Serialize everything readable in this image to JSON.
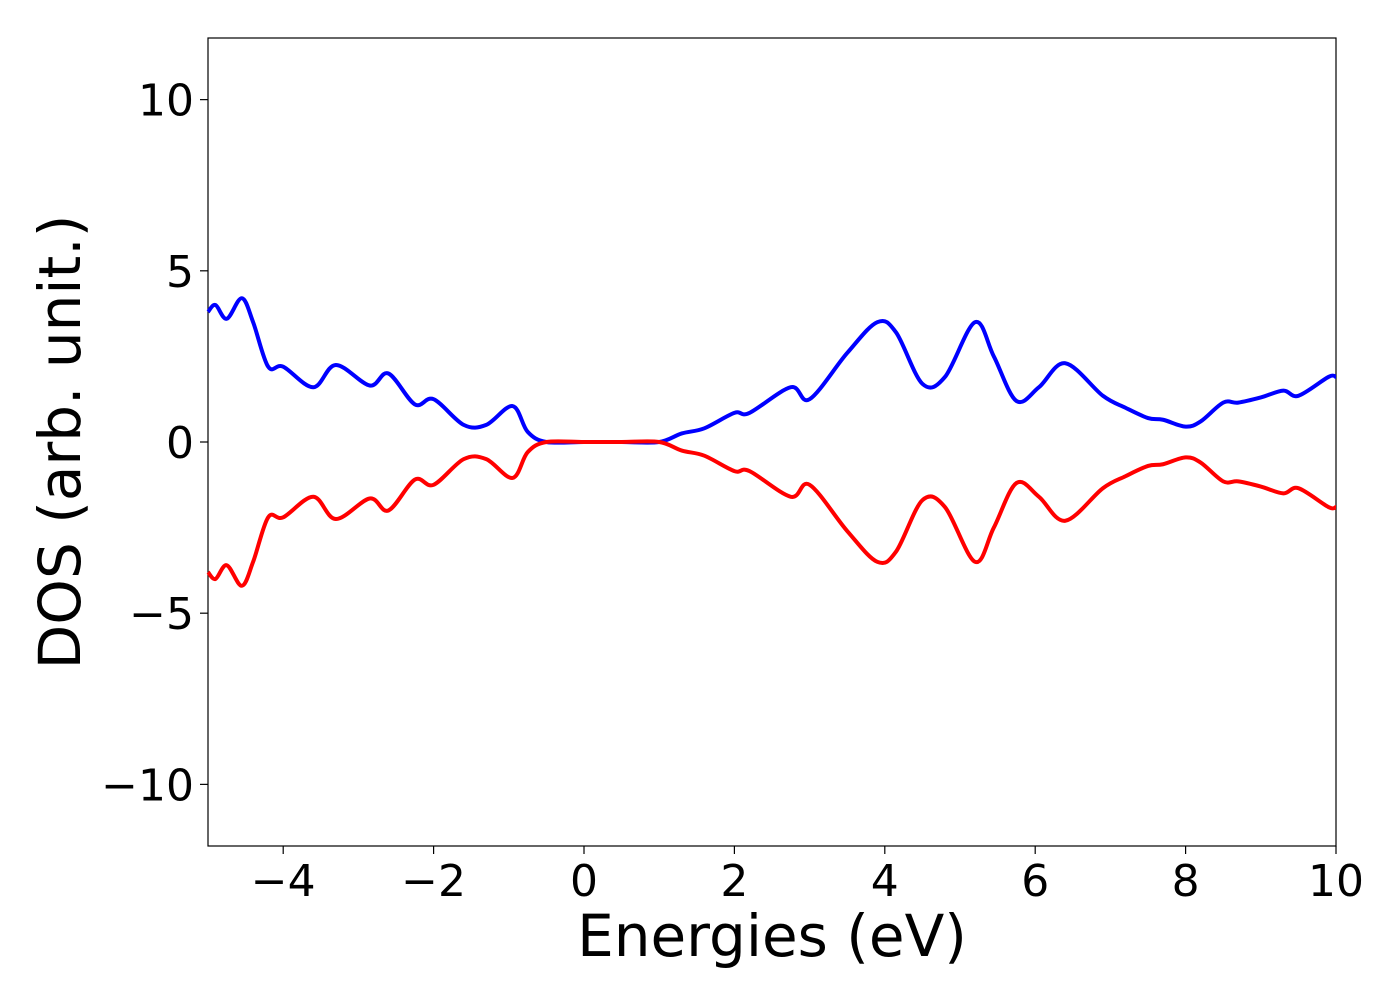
{
  "chart_data": {
    "type": "line",
    "xlabel": "Energies (eV)",
    "ylabel": "DOS (arb. unit.)",
    "x": [
      -5,
      -4.9,
      -4.75,
      -4.55,
      -4.4,
      -4.2,
      -4.0,
      -3.6,
      -3.3,
      -2.85,
      -2.6,
      -2.25,
      -2.0,
      -1.6,
      -1.3,
      -0.95,
      -0.75,
      -0.5,
      0,
      0.5,
      1.0,
      1.3,
      1.6,
      2.0,
      2.2,
      2.75,
      3.0,
      3.5,
      3.9,
      4.15,
      4.5,
      4.8,
      5.2,
      5.45,
      5.75,
      6.05,
      6.4,
      6.9,
      7.2,
      7.5,
      7.7,
      8.0,
      8.2,
      8.5,
      8.7,
      9.0,
      9.3,
      9.5,
      9.9,
      10
    ],
    "series": [
      {
        "color": "#0000ff",
        "values": [
          3.8,
          4.0,
          3.6,
          4.2,
          3.5,
          2.2,
          2.2,
          1.6,
          2.25,
          1.65,
          2.0,
          1.1,
          1.25,
          0.5,
          0.5,
          1.05,
          0.3,
          0,
          0,
          0,
          0,
          0.25,
          0.4,
          0.85,
          0.85,
          1.6,
          1.25,
          2.6,
          3.5,
          3.2,
          1.7,
          1.9,
          3.5,
          2.5,
          1.2,
          1.6,
          2.3,
          1.35,
          1.0,
          0.7,
          0.65,
          0.45,
          0.6,
          1.15,
          1.15,
          1.3,
          1.5,
          1.35,
          1.9,
          1.9
        ]
      },
      {
        "color": "#ff0000",
        "values": [
          -3.8,
          -4.0,
          -3.6,
          -4.2,
          -3.5,
          -2.2,
          -2.2,
          -1.6,
          -2.25,
          -1.65,
          -2.0,
          -1.1,
          -1.25,
          -0.5,
          -0.5,
          -1.05,
          -0.3,
          0,
          0,
          0,
          0,
          -0.25,
          -0.4,
          -0.85,
          -0.85,
          -1.6,
          -1.25,
          -2.6,
          -3.5,
          -3.2,
          -1.7,
          -1.9,
          -3.5,
          -2.5,
          -1.2,
          -1.6,
          -2.3,
          -1.35,
          -1.0,
          -0.7,
          -0.65,
          -0.45,
          -0.6,
          -1.15,
          -1.15,
          -1.3,
          -1.5,
          -1.35,
          -1.9,
          -1.9
        ]
      }
    ],
    "xlim": [
      -5,
      10
    ],
    "ylim": [
      -11.8,
      11.8
    ],
    "xticks": [
      {
        "value": -4,
        "label": "−4"
      },
      {
        "value": -2,
        "label": "−2"
      },
      0,
      2,
      4,
      6,
      8,
      10
    ],
    "yticks": [
      {
        "value": -10,
        "label": "−10"
      },
      {
        "value": -5,
        "label": "−5"
      },
      0,
      5,
      10
    ],
    "grid": false
  }
}
